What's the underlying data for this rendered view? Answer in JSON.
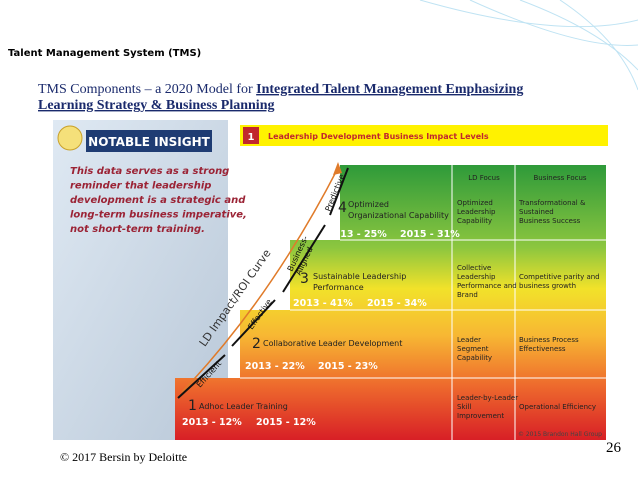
{
  "header": {
    "title": "Talent Management System (TMS)"
  },
  "slide_title": {
    "plain": "TMS Components – a 2020 Model for ",
    "emphasis": [
      "Integrated Talent Management Emphasizing",
      "Learning Strategy & Business Planning"
    ]
  },
  "insight": {
    "heading": "NOTABLE INSIGHT",
    "lines": [
      "This data serves as a strong",
      "reminder that leadership",
      "development is a strategic and",
      "long-term business imperative,",
      "not short-term training."
    ]
  },
  "banner": {
    "number": "1",
    "text": "Leadership Development Business Impact Levels"
  },
  "columns": [
    "LD Focus",
    "Business Focus"
  ],
  "curve_label": "LD Impact/ROI Curve",
  "stages": [
    [
      "Efficient"
    ],
    [
      "Effective"
    ],
    [
      "Business-",
      "Aligned"
    ],
    [
      "Predictive"
    ]
  ],
  "levels": [
    {
      "number": "4",
      "name": [
        "Optimized",
        "Organizational Capability"
      ],
      "stats": [
        "2013 - 25%",
        "2015 - 31%"
      ],
      "ld_focus": [
        "Optimized",
        "Leadership",
        "Capability"
      ],
      "business_focus": [
        "Transformational &",
        "Sustained",
        "Business Success"
      ]
    },
    {
      "number": "3",
      "name": [
        "Sustainable Leadership",
        "Performance"
      ],
      "stats": [
        "2013 - 41%",
        "2015 - 34%"
      ],
      "ld_focus": [
        "Collective",
        "Leadership",
        "Performance and",
        "Brand"
      ],
      "business_focus": [
        "Competitive parity and",
        "business growth"
      ]
    },
    {
      "number": "2",
      "name": [
        "Collaborative Leader Development"
      ],
      "stats": [
        "2013 - 22%",
        "2015 - 23%"
      ],
      "ld_focus": [
        "Leader",
        "Segment",
        "Capability"
      ],
      "business_focus": [
        "Business Process",
        "Effectiveness"
      ]
    },
    {
      "number": "1",
      "name": [
        "Adhoc Leader Training"
      ],
      "stats": [
        "2013 - 12%",
        "2015 - 12%"
      ],
      "ld_focus": [
        "Leader-by-Leader",
        "Skill",
        "Improvement"
      ],
      "business_focus": [
        "Operational Efficiency"
      ]
    }
  ],
  "source": "© 2015 Brandon Hall Group",
  "footer": {
    "copyright": "© 2017 Bersin by Deloitte",
    "page": "26"
  }
}
